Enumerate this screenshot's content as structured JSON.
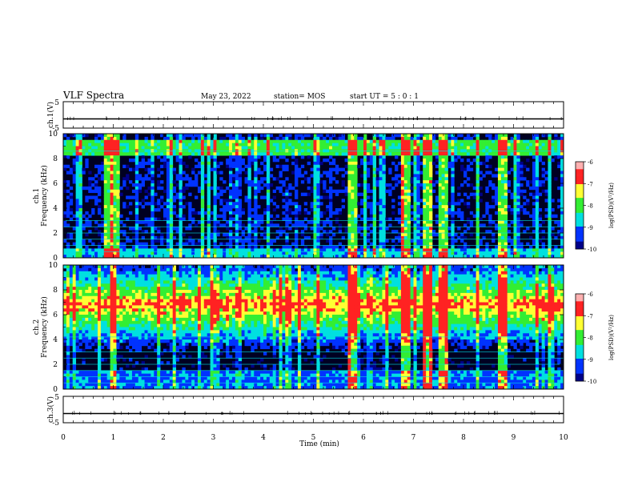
{
  "header": {
    "title": "VLF Spectra",
    "date": "May 23, 2022",
    "station": "station= MOS",
    "start_ut": "start  UT  =   5 : 0  : 1"
  },
  "chart_data": [
    {
      "type": "line",
      "panel": "ch1-waveform",
      "ylabel": "ch.1(V)",
      "ylim": [
        -5,
        5
      ],
      "yticks": [
        "5",
        "-5"
      ],
      "x": [
        0,
        10
      ],
      "y": [
        0,
        0
      ]
    },
    {
      "type": "heatmap",
      "panel": "ch1-spectrogram",
      "ylabel_line1": "ch.1",
      "ylabel_line2": "Frequency  (kHz)",
      "ylim": [
        0,
        10
      ],
      "yticks": [
        "0",
        "2",
        "4",
        "6",
        "8",
        "10"
      ],
      "colorbar": {
        "label": "log(PSD)(V²/Hz)",
        "range": [
          -10,
          -6
        ],
        "ticks": [
          "-6",
          "-7",
          "-8",
          "-9",
          "-10"
        ]
      },
      "bright_bursts_min": [
        0.9,
        1.05,
        5.8,
        6.85,
        7.3,
        7.6,
        8.8
      ]
    },
    {
      "type": "heatmap",
      "panel": "ch2-spectrogram",
      "ylabel_line1": "ch.2",
      "ylabel_line2": "Frequency  (kHz)",
      "ylim": [
        0,
        10
      ],
      "yticks": [
        "0",
        "2",
        "4",
        "6",
        "8",
        "10"
      ],
      "colorbar": {
        "label": "log(PSD)(V²/Hz)",
        "range": [
          -10,
          -6
        ],
        "ticks": [
          "-6",
          "-7",
          "-8",
          "-9",
          "-10"
        ]
      },
      "bright_bursts_min": [
        1.0,
        5.8,
        6.85,
        7.3,
        7.6,
        8.8
      ]
    },
    {
      "type": "line",
      "panel": "ch3-waveform",
      "ylabel": "ch.3(V)",
      "ylim": [
        -5,
        5
      ],
      "yticks": [
        "5",
        "-5"
      ],
      "x": [
        0,
        10
      ],
      "y": [
        0,
        0
      ]
    }
  ],
  "xaxis": {
    "label": "Time  (min)",
    "xlim": [
      0,
      10
    ],
    "ticks": [
      "0",
      "1",
      "2",
      "3",
      "4",
      "5",
      "6",
      "7",
      "8",
      "9",
      "10"
    ]
  },
  "colors": {
    "dark": "#000088",
    "blue": "#0033ff",
    "cyan": "#00e0e0",
    "green": "#33ee33",
    "yellow": "#ffff33",
    "red": "#ff2222",
    "pink": "#ffb0b0"
  }
}
